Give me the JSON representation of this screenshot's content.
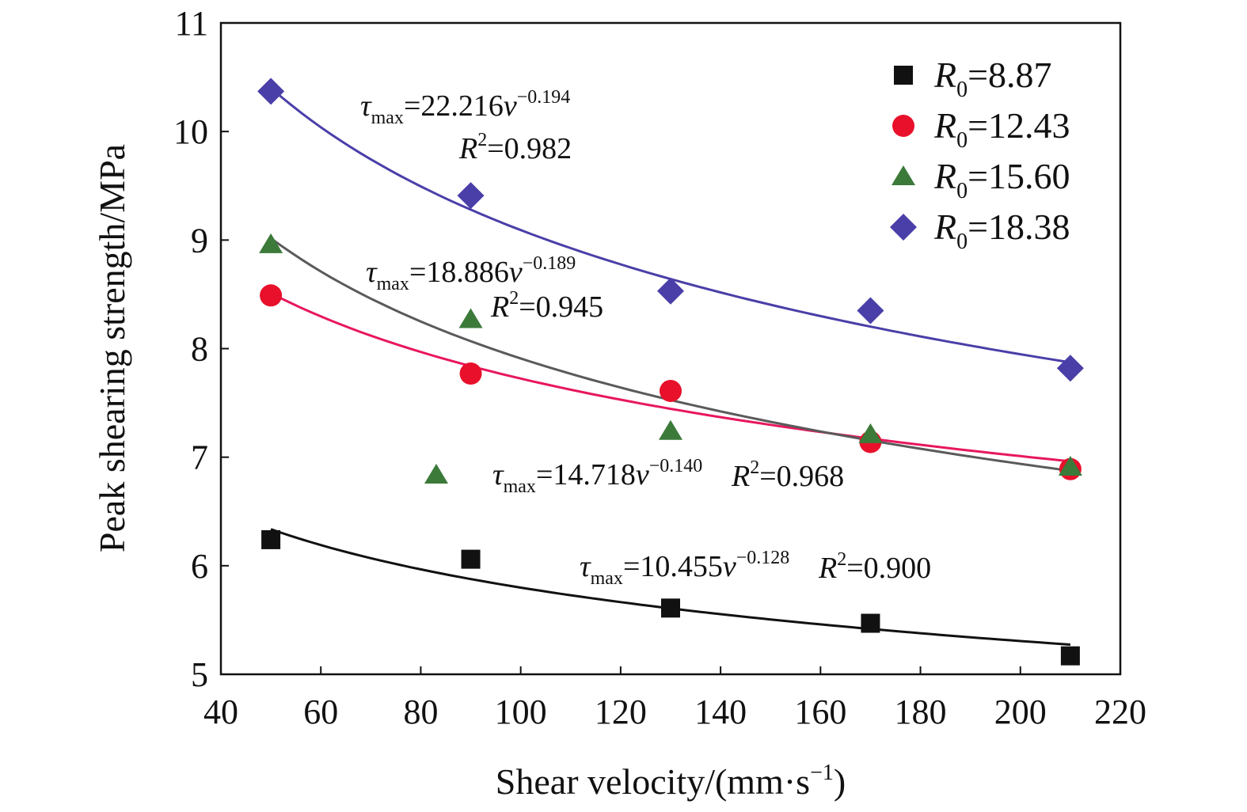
{
  "chart_data": {
    "type": "scatter",
    "title": "",
    "xlabel": "Shear velocity/(mm·s",
    "xlabel_sup": "−1",
    "xlabel_tail": ")",
    "ylabel": "Peak shearing strength/MPa",
    "xlim": [
      40,
      220
    ],
    "ylim": [
      5,
      11
    ],
    "x_ticks": [
      "40",
      "60",
      "80",
      "100",
      "120",
      "140",
      "160",
      "180",
      "200",
      "220"
    ],
    "y_ticks": [
      "5",
      "6",
      "7",
      "8",
      "9",
      "10",
      "11"
    ],
    "grid": false,
    "legend_position": "top-right",
    "series": [
      {
        "name": "R0=8.87",
        "legend_sym": "R",
        "legend_sub": "0",
        "legend_val": "=8.87",
        "marker": "square",
        "color": "#111111",
        "fit_color": "#111111",
        "x": [
          50,
          90,
          130,
          170,
          210
        ],
        "y": [
          6.24,
          6.06,
          5.61,
          5.47,
          5.17
        ],
        "fit": {
          "a": 10.455,
          "b": -0.128
        },
        "eq": {
          "tau": "τ",
          "sub": "max",
          "eq": "=10.455",
          "v": "v",
          "exp": "−0.128",
          "r_sym": "R",
          "r_sup": "2",
          "r_val": "=0.900"
        }
      },
      {
        "name": "R0=12.43",
        "legend_sym": "R",
        "legend_sub": "0",
        "legend_val": "=12.43",
        "marker": "circle",
        "color": "#e8102a",
        "fit_color": "#e8175d",
        "x": [
          50,
          90,
          130,
          170,
          210
        ],
        "y": [
          8.49,
          7.77,
          7.61,
          7.14,
          6.89
        ],
        "fit": {
          "a": 14.718,
          "b": -0.14
        },
        "eq": {
          "tau": "τ",
          "sub": "max",
          "eq": "=14.718",
          "v": "v",
          "exp": "−0.140",
          "r_sym": "R",
          "r_sup": "2",
          "r_val": "=0.968"
        }
      },
      {
        "name": "R0=15.60",
        "legend_sym": "R",
        "legend_sub": "0",
        "legend_val": "=15.60",
        "marker": "triangle",
        "color": "#3c7a3a",
        "fit_color": "#5a5a5a",
        "x": [
          50,
          90,
          130,
          170,
          210
        ],
        "y": [
          8.96,
          8.27,
          7.24,
          7.21,
          6.91
        ],
        "fit": {
          "a": 18.886,
          "b": -0.189
        },
        "eq": {
          "tau": "τ",
          "sub": "max",
          "eq": "=18.886",
          "v": "v",
          "exp": "−0.189",
          "r_sym": "R",
          "r_sup": "2",
          "r_val": "=0.945"
        }
      },
      {
        "name": "R0=18.38",
        "legend_sym": "R",
        "legend_sub": "0",
        "legend_val": "=18.38",
        "marker": "diamond",
        "color": "#4a3fa8",
        "fit_color": "#4a3fa8",
        "x": [
          50,
          90,
          130,
          170,
          210
        ],
        "y": [
          10.37,
          9.41,
          8.53,
          8.35,
          7.82
        ],
        "fit": {
          "a": 22.216,
          "b": -0.194
        },
        "eq": {
          "tau": "τ",
          "sub": "max",
          "eq": "=22.216",
          "v": "v",
          "exp": "−0.194",
          "r_sym": "R",
          "r_sup": "2",
          "r_val": "=0.982"
        }
      }
    ]
  }
}
